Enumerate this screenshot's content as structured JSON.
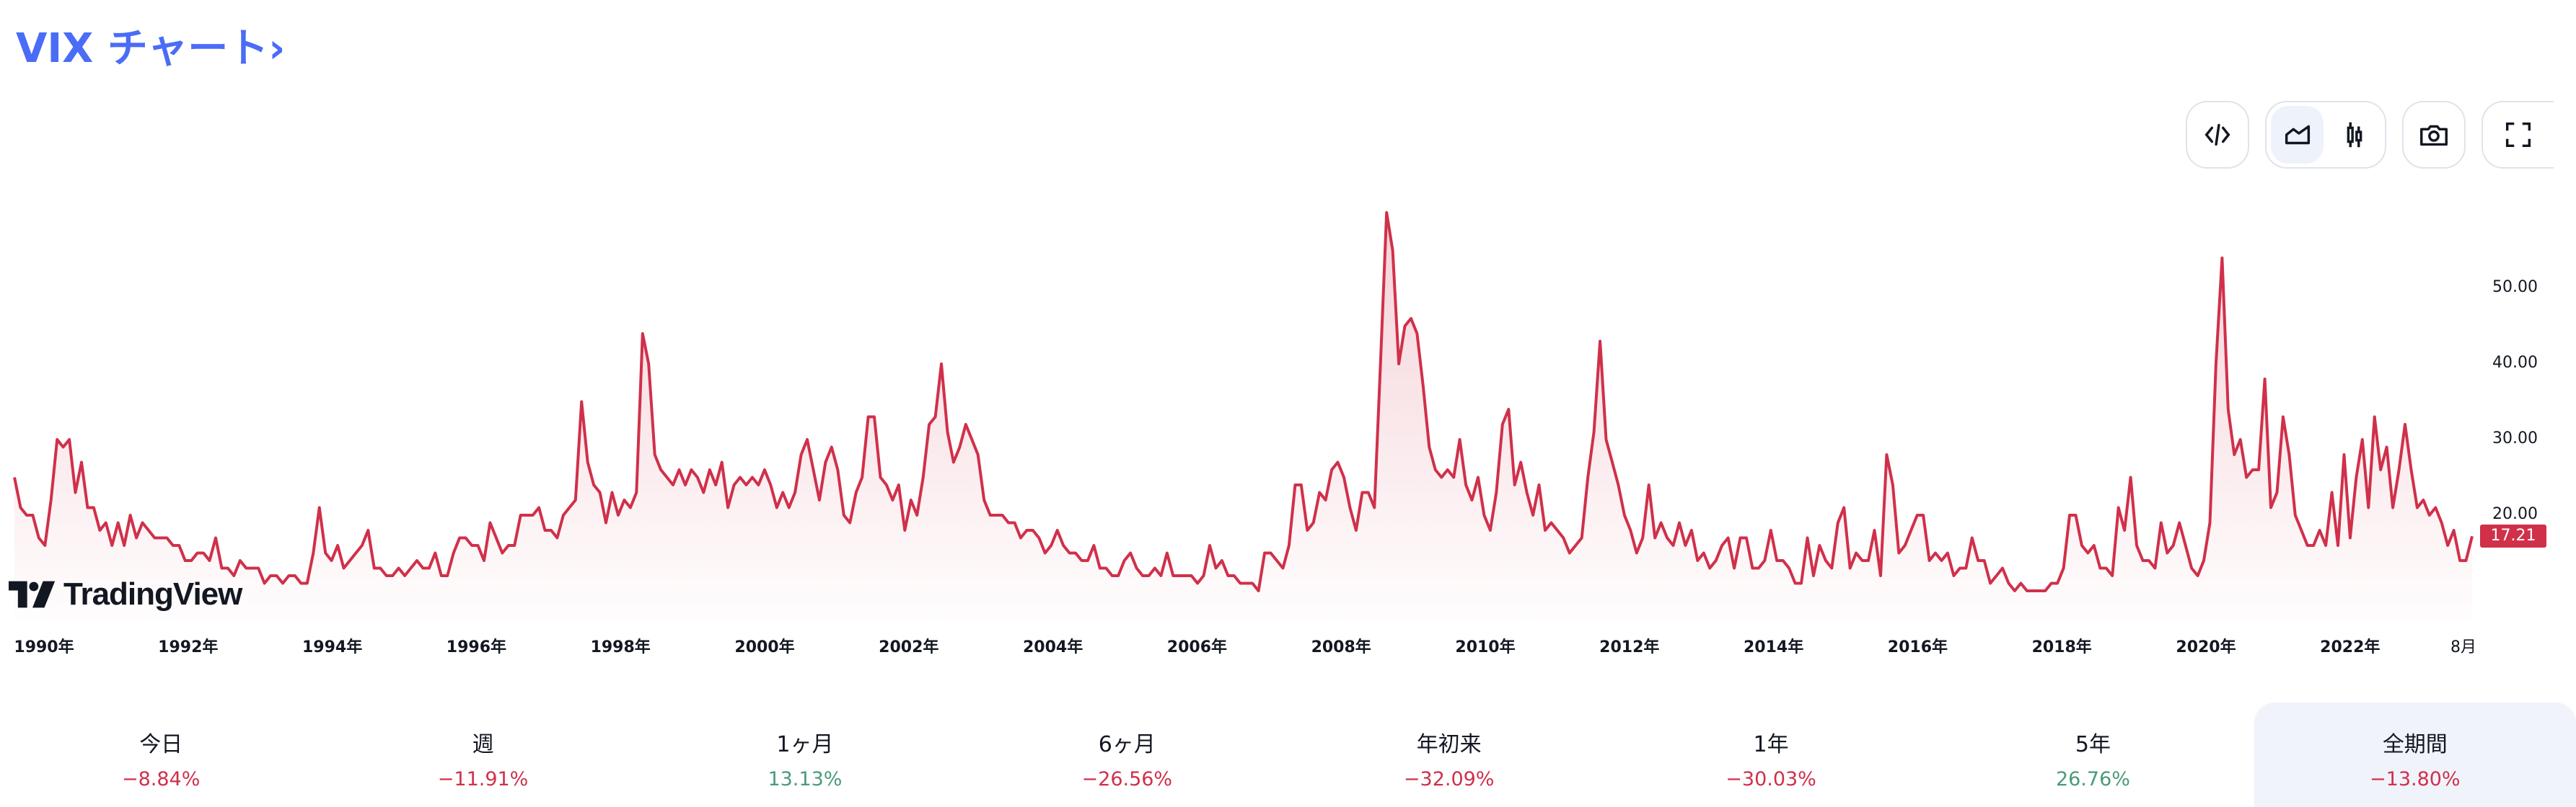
{
  "header": {
    "title": "VIX チャート›"
  },
  "toolbar": {
    "embed": "code-icon",
    "area_style": "area-chart-icon",
    "candle_style": "candlestick-icon",
    "snapshot": "camera-icon",
    "fullscreen": "fullscreen-icon"
  },
  "logo_text": "TradingView",
  "colors": {
    "line": "#d0304a",
    "accent": "#4a6cf7",
    "positive": "#4a9a7a",
    "negative": "#d0304a"
  },
  "chart_data": {
    "type": "area",
    "title": "VIX",
    "frequency": "monthly",
    "start": "1990-01",
    "end": "2023-08",
    "ylim": [
      8,
      62
    ],
    "y_ticks": [
      "50.00",
      "40.00",
      "30.00",
      "20.00"
    ],
    "y_tick_values": [
      50,
      40,
      30,
      20
    ],
    "x_ticks": [
      "1990年",
      "1992年",
      "1994年",
      "1996年",
      "1998年",
      "2000年",
      "2002年",
      "2004年",
      "2006年",
      "2008年",
      "2010年",
      "2012年",
      "2014年",
      "2016年",
      "2018年",
      "2020年",
      "2022年",
      "8月"
    ],
    "last_price": "17.21",
    "values": [
      25,
      21,
      20,
      20,
      17,
      16,
      22,
      30,
      29,
      30,
      23,
      27,
      21,
      21,
      18,
      19,
      16,
      19,
      16,
      20,
      17,
      19,
      18,
      17,
      17,
      17,
      16,
      16,
      14,
      14,
      15,
      15,
      14,
      17,
      13,
      13,
      12,
      14,
      13,
      13,
      13,
      11,
      12,
      12,
      11,
      12,
      12,
      11,
      11,
      15,
      21,
      15,
      14,
      16,
      13,
      14,
      15,
      16,
      18,
      13,
      13,
      12,
      12,
      13,
      12,
      13,
      14,
      13,
      13,
      15,
      12,
      12,
      15,
      17,
      17,
      16,
      16,
      14,
      19,
      17,
      15,
      16,
      16,
      20,
      20,
      20,
      21,
      18,
      18,
      17,
      20,
      21,
      22,
      35,
      27,
      24,
      23,
      19,
      23,
      20,
      22,
      21,
      23,
      44,
      40,
      28,
      26,
      25,
      24,
      26,
      24,
      26,
      25,
      23,
      26,
      24,
      27,
      21,
      24,
      25,
      24,
      25,
      24,
      26,
      24,
      21,
      23,
      21,
      23,
      28,
      30,
      26,
      22,
      27,
      29,
      26,
      20,
      19,
      23,
      25,
      33,
      33,
      25,
      24,
      22,
      24,
      18,
      22,
      20,
      25,
      32,
      33,
      40,
      31,
      27,
      29,
      32,
      30,
      28,
      22,
      20,
      20,
      20,
      19,
      19,
      17,
      18,
      18,
      17,
      15,
      16,
      18,
      16,
      15,
      15,
      14,
      14,
      16,
      13,
      13,
      12,
      12,
      14,
      15,
      13,
      12,
      12,
      13,
      12,
      15,
      12,
      12,
      12,
      12,
      11,
      12,
      16,
      13,
      14,
      12,
      12,
      11,
      11,
      11,
      10,
      15,
      15,
      14,
      13,
      16,
      24,
      24,
      18,
      19,
      23,
      22,
      26,
      27,
      25,
      21,
      18,
      23,
      23,
      21,
      40,
      60,
      55,
      40,
      45,
      46,
      44,
      37,
      29,
      26,
      25,
      26,
      25,
      30,
      24,
      22,
      25,
      20,
      18,
      23,
      32,
      34,
      24,
      27,
      23,
      20,
      24,
      18,
      19,
      18,
      17,
      15,
      16,
      17,
      25,
      31,
      43,
      30,
      27,
      24,
      20,
      18,
      15,
      17,
      24,
      17,
      19,
      17,
      16,
      19,
      16,
      18,
      14,
      15,
      13,
      14,
      16,
      17,
      13,
      17,
      17,
      13,
      13,
      14,
      18,
      14,
      14,
      13,
      11,
      11,
      17,
      12,
      16,
      14,
      13,
      19,
      21,
      13,
      15,
      14,
      14,
      18,
      12,
      28,
      24,
      15,
      16,
      18,
      20,
      20,
      14,
      15,
      14,
      15,
      12,
      13,
      13,
      17,
      14,
      14,
      11,
      12,
      13,
      11,
      10,
      11,
      10,
      10,
      10,
      10,
      11,
      11,
      13,
      20,
      20,
      16,
      15,
      16,
      13,
      13,
      12,
      21,
      18,
      25,
      16,
      14,
      14,
      13,
      19,
      15,
      16,
      19,
      16,
      13,
      12,
      14,
      19,
      40,
      54,
      34,
      28,
      30,
      25,
      26,
      26,
      38,
      21,
      23,
      33,
      28,
      20,
      18,
      16,
      16,
      18,
      16,
      23,
      16,
      28,
      17,
      25,
      30,
      21,
      33,
      26,
      29,
      21,
      26,
      32,
      26,
      21,
      22,
      20,
      21,
      19,
      16,
      18,
      14,
      14,
      17.21
    ]
  },
  "performance": [
    {
      "label": "今日",
      "value": "−8.84%",
      "trend": "neg"
    },
    {
      "label": "週",
      "value": "−11.91%",
      "trend": "neg"
    },
    {
      "label": "1ヶ月",
      "value": "13.13%",
      "trend": "pos"
    },
    {
      "label": "6ヶ月",
      "value": "−26.56%",
      "trend": "neg"
    },
    {
      "label": "年初来",
      "value": "−32.09%",
      "trend": "neg"
    },
    {
      "label": "1年",
      "value": "−30.03%",
      "trend": "neg"
    },
    {
      "label": "5年",
      "value": "26.76%",
      "trend": "pos"
    },
    {
      "label": "全期間",
      "value": "−13.80%",
      "trend": "neg",
      "selected": true
    }
  ]
}
